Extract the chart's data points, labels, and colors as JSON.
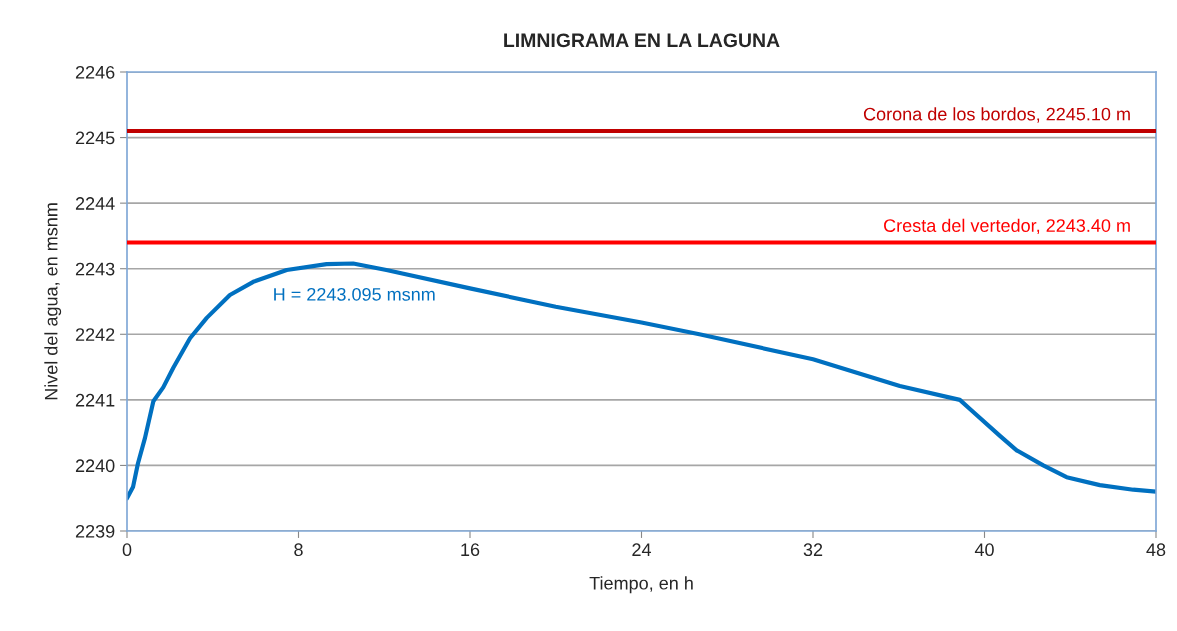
{
  "chart_data": {
    "type": "line",
    "title": "LIMNIGRAMA EN LA LAGUNA",
    "xlabel": "Tiempo, en h",
    "ylabel": "Nivel del agua, en msnm",
    "series": [
      {
        "color": "#0070c0",
        "x": [
          0,
          0.28,
          0.51,
          0.84,
          1.23,
          1.69,
          2.16,
          2.94,
          3.72,
          4.8,
          5.89,
          7.45,
          9.31,
          10.55,
          12.1,
          16,
          20,
          24,
          26.7,
          32,
          36.05,
          38.85,
          39.32,
          40.72,
          41.5,
          42.74,
          43.83,
          45.38,
          46.94,
          48
        ],
        "values": [
          2239.5,
          2239.67,
          2240.03,
          2240.42,
          2240.98,
          2241.19,
          2241.49,
          2241.94,
          2242.25,
          2242.6,
          2242.8,
          2242.98,
          2243.07,
          2243.08,
          2242.98,
          2242.7,
          2242.42,
          2242.18,
          2242.0,
          2241.62,
          2241.21,
          2241.0,
          2240.86,
          2240.45,
          2240.23,
          2240.0,
          2239.82,
          2239.7,
          2239.63,
          2239.6
        ]
      }
    ],
    "xlim": [
      0,
      48
    ],
    "xticks": [
      0,
      8,
      16,
      24,
      32,
      40,
      48
    ],
    "ylim": [
      2239,
      2246
    ],
    "yticks": [
      2239,
      2240,
      2241,
      2242,
      2243,
      2244,
      2245,
      2246
    ],
    "grid": "y",
    "line_style": "solid",
    "marker": "none",
    "ref_lines": [
      {
        "axis": "y",
        "value": 2245.1,
        "label": "Corona de los bordos, 2245.10 m",
        "color": "#c00000"
      },
      {
        "axis": "y",
        "value": 2243.4,
        "label": "Cresta del vertedor, 2243.40 m",
        "color": "#ff0000"
      }
    ],
    "annotations": [
      {
        "text": "H = 2243.095 msnm",
        "x": 10.6,
        "y": 2243.095
      }
    ]
  }
}
